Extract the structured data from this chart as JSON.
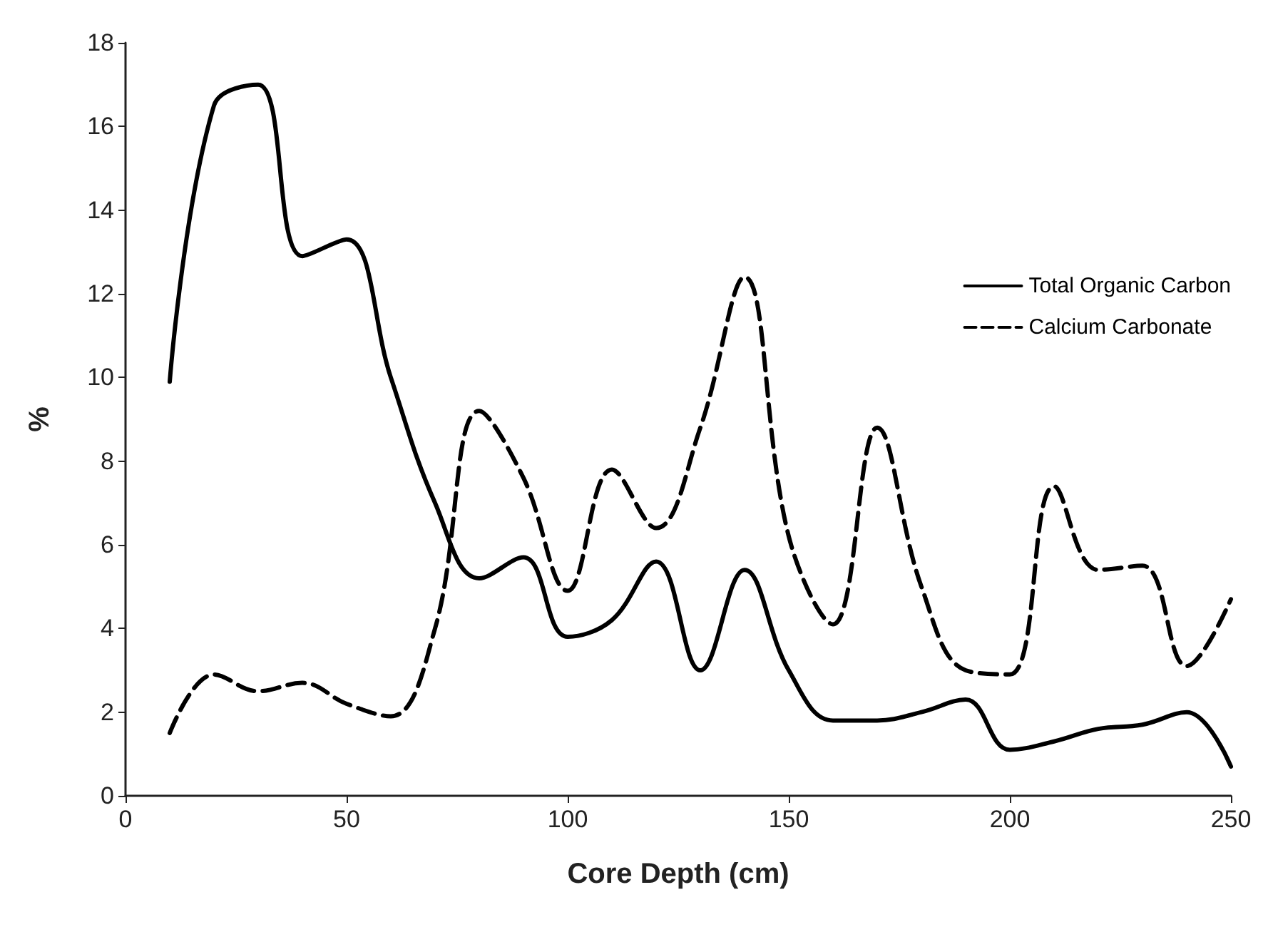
{
  "chart_data": {
    "type": "line",
    "xlabel": "Core Depth (cm)",
    "ylabel": "%",
    "x": [
      10,
      20,
      30,
      40,
      50,
      60,
      70,
      80,
      90,
      100,
      110,
      120,
      130,
      140,
      150,
      160,
      170,
      180,
      190,
      200,
      210,
      220,
      230,
      240,
      250
    ],
    "series": [
      {
        "name": "Total Organic Carbon",
        "color": "#000000",
        "line_style": "solid",
        "values": [
          9.9,
          16.5,
          17.0,
          12.9,
          13.3,
          10.0,
          7.0,
          5.2,
          5.7,
          3.8,
          4.2,
          5.6,
          3.0,
          5.4,
          3.0,
          1.8,
          1.8,
          2.0,
          2.3,
          1.1,
          1.3,
          1.6,
          1.7,
          2.0,
          0.7
        ]
      },
      {
        "name": "Calcium Carbonate",
        "color": "#000000",
        "line_style": "dashed",
        "values": [
          1.5,
          2.9,
          2.5,
          2.7,
          2.2,
          1.9,
          4.0,
          9.2,
          7.6,
          4.9,
          7.8,
          6.4,
          8.8,
          12.4,
          6.2,
          4.1,
          8.8,
          5.0,
          3.0,
          2.9,
          7.4,
          5.4,
          5.5,
          3.1,
          4.7
        ]
      }
    ],
    "xlim": [
      0,
      250
    ],
    "xticks": [
      0,
      50,
      100,
      150,
      200,
      250
    ],
    "ylim": [
      0,
      18
    ],
    "yticks": [
      0,
      2,
      4,
      6,
      8,
      10,
      12,
      14,
      16,
      18
    ],
    "grid": false,
    "legend": "top right",
    "marker": "none"
  }
}
